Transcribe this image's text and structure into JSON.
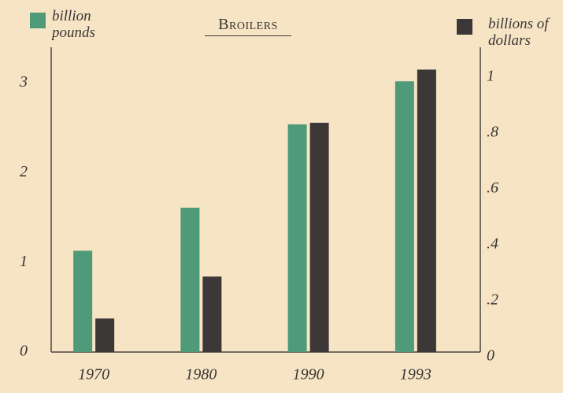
{
  "chart_data": {
    "type": "bar",
    "title": "Broilers",
    "categories": [
      "1970",
      "1980",
      "1990",
      "1993"
    ],
    "series": [
      {
        "name": "billion pounds",
        "color": "#4f9a79",
        "values": [
          1.13,
          1.61,
          2.54,
          3.02
        ]
      },
      {
        "name": "billions of dollars",
        "color": "#3d3838",
        "axis": "y2",
        "values": [
          0.12,
          0.27,
          0.82,
          1.01
        ]
      }
    ],
    "ylim": [
      0,
      3.4
    ],
    "yticks": [
      0,
      1,
      2,
      3
    ],
    "y2lim": [
      0,
      1.09
    ],
    "y2ticks": [
      0,
      {
        "value": 0.2,
        "label": ".2"
      },
      {
        "value": 0.4,
        "label": ".4"
      },
      {
        "value": 0.6,
        "label": ".6"
      },
      {
        "value": 0.8,
        "label": ".8"
      },
      1
    ],
    "grid": false
  }
}
